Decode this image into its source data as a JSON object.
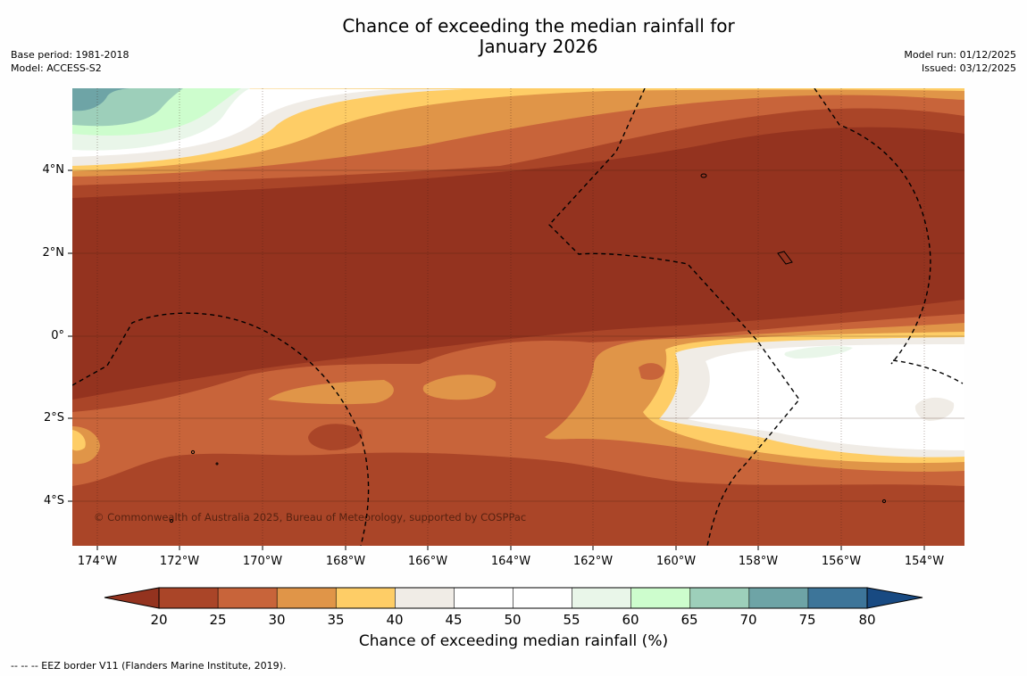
{
  "header": {
    "title_line1": "Chance of exceeding the median rainfall for",
    "title_line2": "January 2026",
    "base_period": "Base period: 1981-2018",
    "model": "Model: ACCESS-S2",
    "model_run": "Model run: 01/12/2025",
    "issued": "Issued: 03/12/2025"
  },
  "map": {
    "lat_labels": [
      "4°N",
      "2°N",
      "0°",
      "2°S",
      "4°S"
    ],
    "lon_labels": [
      "174°W",
      "172°W",
      "170°W",
      "168°W",
      "166°W",
      "164°W",
      "162°W",
      "160°W",
      "158°W",
      "156°W",
      "154°W"
    ],
    "copyright": "© Commonwealth of Australia 2025, Bureau of Meteorology, supported by COSPPac"
  },
  "legend": {
    "ticks": [
      "20",
      "25",
      "30",
      "35",
      "40",
      "45",
      "50",
      "55",
      "60",
      "65",
      "70",
      "75",
      "80"
    ],
    "colors": [
      "#94331f",
      "#aa4528",
      "#c8643a",
      "#e09548",
      "#fecd66",
      "#f0ece6",
      "#ffffff",
      "#ffffff",
      "#e9f6e9",
      "#cdfdcd",
      "#9dcfba",
      "#6ea4a6",
      "#3d7599",
      "#184a82"
    ],
    "title": "Chance of exceeding median rainfall (%)"
  },
  "footnote": "--  --  -- EEZ border V11 (Flanders Marine Institute, 2019)."
}
